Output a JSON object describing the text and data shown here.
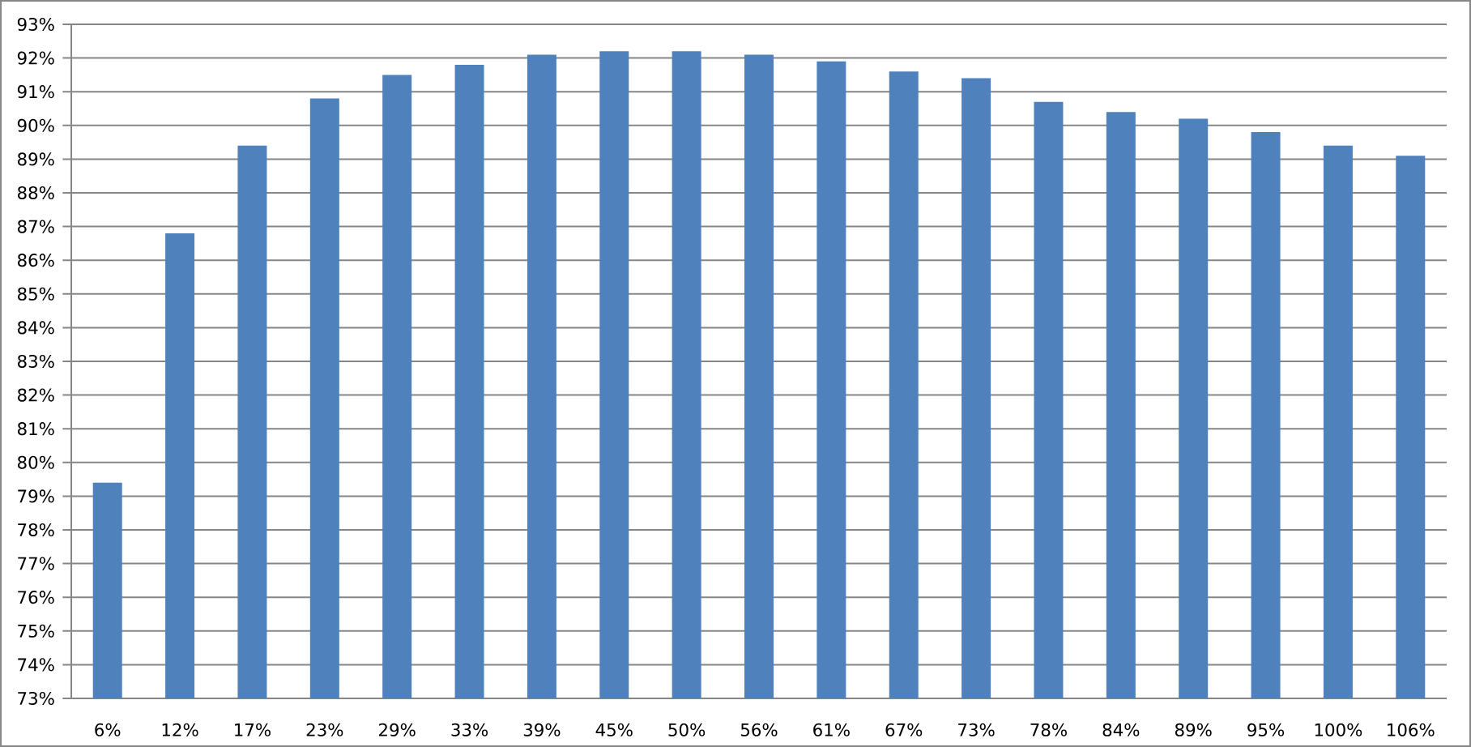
{
  "chart_data": {
    "type": "bar",
    "categories": [
      "6%",
      "12%",
      "17%",
      "23%",
      "29%",
      "33%",
      "39%",
      "45%",
      "50%",
      "56%",
      "61%",
      "67%",
      "73%",
      "78%",
      "84%",
      "89%",
      "95%",
      "100%",
      "106%"
    ],
    "values": [
      79.4,
      86.8,
      89.4,
      90.8,
      91.5,
      91.8,
      92.1,
      92.2,
      92.2,
      92.1,
      91.9,
      91.6,
      91.4,
      90.7,
      90.4,
      90.2,
      89.8,
      89.4,
      89.1
    ],
    "color": "#4f81bd",
    "ylim": [
      73,
      93
    ],
    "yticks": [
      {
        "value": 73,
        "label": "73%"
      },
      {
        "value": 74,
        "label": "74%"
      },
      {
        "value": 75,
        "label": "75%"
      },
      {
        "value": 76,
        "label": "76%"
      },
      {
        "value": 77,
        "label": "77%"
      },
      {
        "value": 78,
        "label": "78%"
      },
      {
        "value": 79,
        "label": "79%"
      },
      {
        "value": 80,
        "label": "80%"
      },
      {
        "value": 81,
        "label": "81%"
      },
      {
        "value": 82,
        "label": "82%"
      },
      {
        "value": 83,
        "label": "83%"
      },
      {
        "value": 84,
        "label": "84%"
      },
      {
        "value": 85,
        "label": "85%"
      },
      {
        "value": 86,
        "label": "86%"
      },
      {
        "value": 87,
        "label": "87%"
      },
      {
        "value": 88,
        "label": "88%"
      },
      {
        "value": 89,
        "label": "89%"
      },
      {
        "value": 90,
        "label": "90%"
      },
      {
        "value": 91,
        "label": "91%"
      },
      {
        "value": 92,
        "label": "92%"
      },
      {
        "value": 93,
        "label": "93%"
      }
    ],
    "grid": "y"
  }
}
